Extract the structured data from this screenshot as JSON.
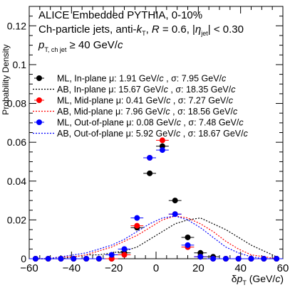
{
  "chart_data": {
    "type": "scatter",
    "title_lines": [
      "ALICE Embedded PYTHIA, 0-10%",
      {
        "a": "Ch-particle jets, anti-",
        "k": "k",
        "ksub": "T",
        "b": ", ",
        "r": "R",
        "c": " = 0.6, |",
        "eta": "η",
        "etasub": "jet",
        "d": "| < 0.30"
      },
      {
        "p": "p",
        "psub": "T, ch jet",
        "rest": " ≥ 40 GeV/",
        "c": "c"
      }
    ],
    "xlabel": {
      "delta": "δ",
      "p": "p",
      "sub": "T",
      "unit": " (GeV/",
      "c": "c",
      "close": ")"
    },
    "ylabel": "Probability Density",
    "xlim": [
      -60,
      60
    ],
    "ylim": [
      0,
      0.13
    ],
    "x_ticks": [
      -60,
      -40,
      -20,
      0,
      20,
      40,
      60
    ],
    "x_tick_labels": [
      "−60",
      "−40",
      "−20",
      "0",
      "20",
      "40",
      "60"
    ],
    "y_ticks": [
      0,
      0.02,
      0.04,
      0.06,
      0.08,
      0.1,
      0.12
    ],
    "y_tick_labels": [
      "0",
      "0.02",
      "0.04",
      "0.06",
      "0.08",
      "0.1",
      "0.12"
    ],
    "legend_position": "top-right",
    "series": [
      {
        "name": "ML, In-plane μ: 1.91 GeV/c , σ: 7.95 GeV/c",
        "legend": {
          "pre": "ML, In-plane ",
          "mu": "μ",
          "m": ": 1.91 GeV/",
          "c1": "c",
          "s": " , σ: 7.95 GeV/",
          "c2": "c"
        },
        "color": "#000000",
        "style": "markers",
        "x": [
          -57,
          -51,
          -45,
          -39,
          -33,
          -27,
          -21,
          -15,
          -9,
          -3,
          3,
          9,
          15,
          21,
          27,
          33,
          39,
          45,
          51,
          57
        ],
        "y": [
          0,
          0,
          0,
          0,
          0,
          0,
          0,
          0.003,
          0.016,
          0.044,
          0.058,
          0.03,
          0.011,
          0.003,
          0.001,
          0,
          0,
          0,
          0,
          0
        ]
      },
      {
        "name": "AB, In-plane μ: 15.67 GeV/c , σ: 18.35 GeV/c",
        "legend": {
          "pre": "AB, In-plane ",
          "mu": "μ",
          "m": ": 15.67 GeV/",
          "c1": "c",
          "s": " , σ: 18.35 GeV/",
          "c2": "c"
        },
        "color": "#000000",
        "style": "dotted",
        "x": [
          -57,
          -51,
          -45,
          -39,
          -33,
          -27,
          -21,
          -15,
          -9,
          -3,
          3,
          9,
          15,
          21,
          27,
          33,
          39,
          45,
          51,
          57
        ],
        "y": [
          0,
          0,
          0,
          0.001,
          0.002,
          0.002,
          0.003,
          0.004,
          0.006,
          0.01,
          0.014,
          0.018,
          0.02,
          0.021,
          0.018,
          0.015,
          0.011,
          0.007,
          0.004,
          0.001
        ]
      },
      {
        "name": "ML, Mid-plane μ: 0.41 GeV/c , σ: 7.27 GeV/c",
        "legend": {
          "pre": "ML, Mid-plane ",
          "mu": "μ",
          "m": ": 0.41 GeV/",
          "c1": "c",
          "s": " , σ: 7.27 GeV/",
          "c2": "c"
        },
        "color": "#ff0000",
        "style": "markers",
        "x": [
          -57,
          -51,
          -45,
          -39,
          -33,
          -27,
          -21,
          -15,
          -9,
          -3,
          3,
          9,
          15,
          21,
          27,
          33,
          39,
          45,
          51,
          57
        ],
        "y": [
          0,
          0,
          0,
          0,
          0,
          0,
          0,
          0.002,
          0.017,
          0.052,
          0.061,
          0.023,
          0.006,
          0.001,
          0,
          0,
          0,
          0,
          0,
          0
        ]
      },
      {
        "name": "AB, Mid-plane μ: 7.96 GeV/c , σ: 18.56 GeV/c",
        "legend": {
          "pre": "AB, Mid-plane ",
          "mu": "μ",
          "m": ": 7.96 GeV/",
          "c1": "c",
          "s": " , σ: 18.56 GeV/",
          "c2": "c"
        },
        "color": "#ff0000",
        "style": "dotted",
        "x": [
          -57,
          -51,
          -45,
          -39,
          -33,
          -27,
          -21,
          -15,
          -9,
          -3,
          3,
          9,
          15,
          21,
          27,
          33,
          39,
          45,
          51,
          57
        ],
        "y": [
          0,
          0,
          0.001,
          0.001,
          0.002,
          0.004,
          0.006,
          0.009,
          0.012,
          0.016,
          0.02,
          0.022,
          0.021,
          0.018,
          0.014,
          0.009,
          0.005,
          0.002,
          0.001,
          0
        ]
      },
      {
        "name": "ML, Out-of-plane μ: 0.08 GeV/c , σ: 7.48 GeV/c",
        "legend": {
          "pre": "ML, Out-of-plane ",
          "mu": "μ",
          "m": ": 0.08 GeV/",
          "c1": "c",
          "s": " , σ: 7.48 GeV/",
          "c2": "c"
        },
        "color": "#0000ff",
        "style": "markers",
        "x": [
          -57,
          -51,
          -45,
          -39,
          -33,
          -27,
          -21,
          -15,
          -9,
          -3,
          3,
          9,
          15,
          21,
          27,
          33,
          39,
          45,
          51,
          57
        ],
        "y": [
          0,
          0,
          0,
          0,
          0,
          0,
          0.002,
          0.005,
          0.021,
          0.052,
          0.056,
          0.023,
          0.007,
          0.001,
          0,
          0,
          0,
          0,
          0,
          0
        ]
      },
      {
        "name": "AB, Out-of-plane μ: 5.92 GeV/c , σ: 18.67 GeV/c",
        "legend": {
          "pre": "AB, Out-of-plane ",
          "mu": "μ",
          "m": ": 5.92 GeV/",
          "c1": "c",
          "s": " , σ: 18.67 GeV/",
          "c2": "c"
        },
        "color": "#0000ff",
        "style": "dotted",
        "x": [
          -57,
          -51,
          -45,
          -39,
          -33,
          -27,
          -21,
          -15,
          -9,
          -3,
          3,
          9,
          15,
          21,
          27,
          33,
          39,
          45,
          51,
          57
        ],
        "y": [
          0,
          0,
          0.001,
          0.002,
          0.003,
          0.005,
          0.007,
          0.01,
          0.014,
          0.018,
          0.021,
          0.022,
          0.02,
          0.016,
          0.011,
          0.006,
          0.003,
          0.001,
          0,
          0
        ]
      }
    ]
  }
}
